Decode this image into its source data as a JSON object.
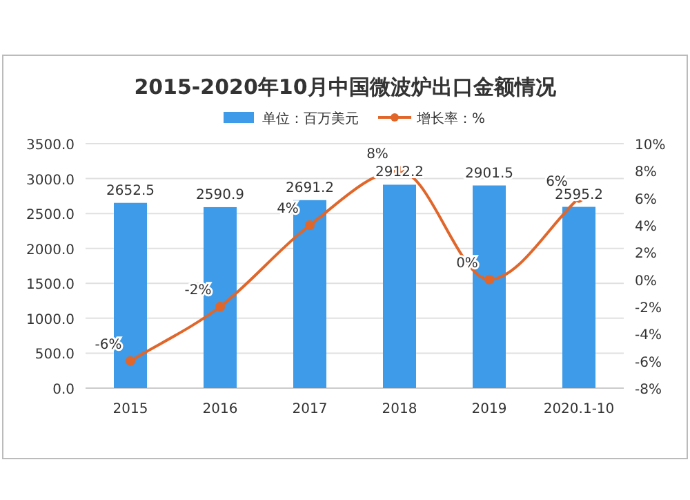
{
  "chart_data": {
    "type": "bar",
    "title": "2015-2020年10月中国微波炉出口金额情况",
    "categories": [
      "2015",
      "2016",
      "2017",
      "2018",
      "2019",
      "2020.1-10"
    ],
    "series": [
      {
        "name": "单位：百万美元",
        "color": "#3d9be9",
        "values": [
          2652.5,
          2590.9,
          2691.2,
          2912.2,
          2901.5,
          2595.2
        ]
      },
      {
        "name": "增长率：%",
        "type": "line",
        "axis": "y2",
        "color": "#e0662a",
        "marker": "circle",
        "values": [
          -6,
          -2,
          4,
          8,
          0,
          6
        ],
        "value_labels": [
          "-6%",
          "-2%",
          "4%",
          "8%",
          "0%",
          "6%"
        ]
      }
    ],
    "data_labels": true,
    "ylim": [
      0,
      3500
    ],
    "yticks": [
      {
        "value": 0,
        "label": "0.0"
      },
      {
        "value": 500,
        "label": "500.0"
      },
      {
        "value": 1000,
        "label": "1000.0"
      },
      {
        "value": 1500,
        "label": "1500.0"
      },
      {
        "value": 2000,
        "label": "2000.0"
      },
      {
        "value": 2500,
        "label": "2500.0"
      },
      {
        "value": 3000,
        "label": "3000.0"
      },
      {
        "value": 3500,
        "label": "3500.0"
      }
    ],
    "y2lim": [
      -8,
      10
    ],
    "y2ticks": [
      {
        "value": -8,
        "label": "-8%"
      },
      {
        "value": -6,
        "label": "-6%"
      },
      {
        "value": -4,
        "label": "-4%"
      },
      {
        "value": -2,
        "label": "-2%"
      },
      {
        "value": 0,
        "label": "0%"
      },
      {
        "value": 2,
        "label": "2%"
      },
      {
        "value": 4,
        "label": "4%"
      },
      {
        "value": 6,
        "label": "6%"
      },
      {
        "value": 8,
        "label": "8%"
      },
      {
        "value": 10,
        "label": "10%"
      }
    ],
    "grid": "y",
    "legend": "top"
  }
}
